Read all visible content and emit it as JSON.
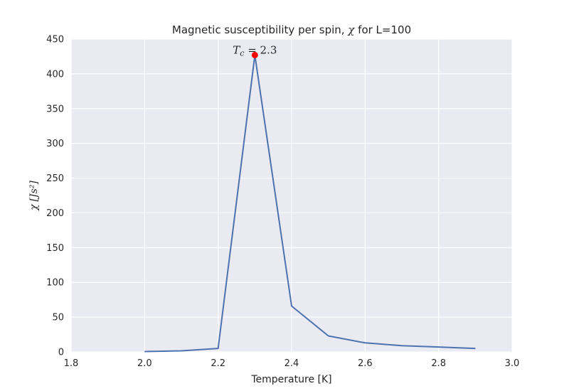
{
  "chart_data": {
    "type": "line",
    "title": "Magnetic susceptibility per spin, χ for L=100",
    "title_parts": {
      "prefix": "Magnetic susceptibility per spin, ",
      "symbol": "χ",
      "suffix": " for L=100"
    },
    "xlabel": "Temperature [K]",
    "ylabel": "χ [Js²]",
    "ylabel_parts": {
      "symbol": "χ",
      "unit": "[Js²]"
    },
    "xlim": [
      1.8,
      3.0
    ],
    "ylim": [
      0,
      450
    ],
    "xticks": [
      1.8,
      2.0,
      2.2,
      2.4,
      2.6,
      2.8,
      3.0
    ],
    "yticks": [
      0,
      50,
      100,
      150,
      200,
      250,
      300,
      350,
      400,
      450
    ],
    "xtick_labels": [
      "1.8",
      "2.0",
      "2.2",
      "2.4",
      "2.6",
      "2.8",
      "3.0"
    ],
    "ytick_labels": [
      "0",
      "50",
      "100",
      "150",
      "200",
      "250",
      "300",
      "350",
      "400",
      "450"
    ],
    "grid": true,
    "series": [
      {
        "name": "chi",
        "color": "#4c72b0",
        "x": [
          2.0,
          2.1,
          2.2,
          2.3,
          2.4,
          2.5,
          2.6,
          2.7,
          2.8,
          2.9
        ],
        "y": [
          0.5,
          1.5,
          5,
          427,
          66,
          23,
          13,
          9,
          7,
          5
        ]
      }
    ],
    "annotations": [
      {
        "text": "T_c = 2.3",
        "label": "T",
        "subscript": "c",
        "value": " = 2.3",
        "x": 2.3,
        "y": 427,
        "marker_color": "#ff0000"
      }
    ],
    "colors": {
      "plot_background": "#eaeaf2",
      "grid": "#ffffff",
      "text": "#262626"
    }
  }
}
